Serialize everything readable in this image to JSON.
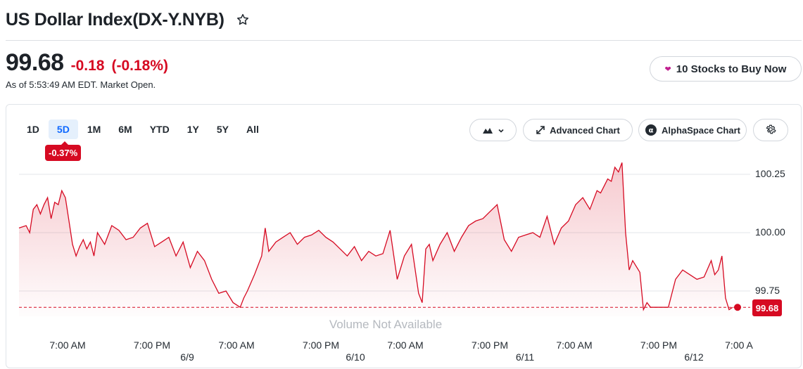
{
  "header": {
    "title": "US Dollar Index(DX-Y.NYB)",
    "star_icon": "star-icon"
  },
  "quote": {
    "price": "99.68",
    "change": "-0.18",
    "change_pct": "(-0.18%)",
    "as_of": "As of 5:53:49 AM EDT. Market Open."
  },
  "promo": {
    "label": "10 Stocks to Buy Now",
    "icon": "heart-icon"
  },
  "ranges": {
    "items": [
      "1D",
      "5D",
      "1M",
      "6M",
      "YTD",
      "1Y",
      "5Y",
      "All"
    ],
    "active": "5D",
    "badge": "-0.37%"
  },
  "toolbar": {
    "chart_type_icon": "mountain-chart-icon",
    "advanced_label": "Advanced Chart",
    "alphaspace_label": "AlphaSpace Chart",
    "settings_icon": "gear-icon"
  },
  "colors": {
    "negative": "#d60a22",
    "active": "#0f69ff",
    "line": "#d60a22"
  },
  "chart_data": {
    "type": "area",
    "y_ticks": [
      "100.25",
      "100.00",
      "99.75"
    ],
    "ylim": [
      99.61,
      100.33
    ],
    "time_labels": [
      "7:00 AM",
      "7:00 PM",
      "7:00 AM",
      "7:00 PM",
      "7:00 AM",
      "7:00 PM",
      "7:00 AM",
      "7:00 PM",
      "7:00 A"
    ],
    "date_labels": [
      "6/9",
      "6/10",
      "6/11",
      "6/12"
    ],
    "volume_note": "Volume Not Available",
    "reference_value": 99.68,
    "last_value": "99.68",
    "x": [
      0,
      0.01,
      0.015,
      0.02,
      0.025,
      0.03,
      0.035,
      0.04,
      0.045,
      0.05,
      0.055,
      0.06,
      0.065,
      0.07,
      0.075,
      0.08,
      0.085,
      0.09,
      0.095,
      0.1,
      0.105,
      0.11,
      0.12,
      0.13,
      0.14,
      0.15,
      0.16,
      0.17,
      0.18,
      0.19,
      0.2,
      0.21,
      0.22,
      0.23,
      0.24,
      0.25,
      0.26,
      0.27,
      0.28,
      0.29,
      0.3,
      0.31,
      0.315,
      0.32,
      0.33,
      0.34,
      0.345,
      0.35,
      0.36,
      0.37,
      0.38,
      0.39,
      0.4,
      0.41,
      0.42,
      0.43,
      0.44,
      0.45,
      0.46,
      0.47,
      0.48,
      0.49,
      0.5,
      0.51,
      0.52,
      0.53,
      0.54,
      0.55,
      0.56,
      0.565,
      0.57,
      0.575,
      0.58,
      0.59,
      0.6,
      0.61,
      0.62,
      0.63,
      0.64,
      0.65,
      0.66,
      0.67,
      0.68,
      0.69,
      0.7,
      0.71,
      0.72,
      0.73,
      0.74,
      0.75,
      0.76,
      0.77,
      0.78,
      0.79,
      0.8,
      0.81,
      0.815,
      0.82,
      0.825,
      0.83,
      0.835,
      0.84,
      0.845,
      0.85,
      0.855,
      0.86,
      0.87,
      0.875,
      0.88,
      0.885,
      0.89,
      0.9,
      0.91,
      0.92,
      0.93,
      0.94,
      0.95,
      0.96,
      0.97,
      0.975,
      0.98,
      0.985,
      0.99,
      0.995,
      1
    ],
    "values": [
      100.02,
      100.03,
      100.0,
      100.1,
      100.12,
      100.08,
      100.12,
      100.15,
      100.06,
      100.13,
      100.12,
      100.18,
      100.15,
      100.05,
      99.95,
      99.9,
      99.94,
      99.97,
      99.93,
      99.96,
      99.9,
      100.0,
      99.95,
      100.03,
      100.01,
      99.97,
      99.98,
      100.02,
      100.04,
      99.94,
      99.96,
      99.98,
      99.9,
      99.96,
      99.85,
      99.92,
      99.88,
      99.8,
      99.74,
      99.75,
      99.7,
      99.68,
      99.72,
      99.75,
      99.82,
      99.9,
      100.02,
      99.92,
      99.96,
      99.98,
      100.0,
      99.95,
      99.98,
      99.99,
      100.01,
      99.98,
      99.96,
      99.93,
      99.9,
      99.94,
      99.88,
      99.92,
      99.9,
      99.91,
      100.01,
      99.8,
      99.9,
      99.95,
      99.74,
      99.7,
      99.93,
      99.95,
      99.88,
      99.95,
      100.0,
      99.92,
      99.98,
      100.03,
      100.05,
      100.06,
      100.09,
      100.12,
      99.97,
      99.92,
      99.98,
      99.99,
      100.0,
      99.98,
      100.07,
      99.95,
      100.02,
      100.05,
      100.12,
      100.15,
      100.1,
      100.18,
      100.17,
      100.2,
      100.23,
      100.22,
      100.28,
      100.26,
      100.3,
      100.0,
      99.84,
      99.88,
      99.83,
      99.67,
      99.7,
      99.68,
      99.68,
      99.68,
      99.68,
      99.8,
      99.84,
      99.82,
      99.8,
      99.81,
      99.88,
      99.82,
      99.84,
      99.9,
      99.72,
      99.67,
      99.68
    ]
  }
}
